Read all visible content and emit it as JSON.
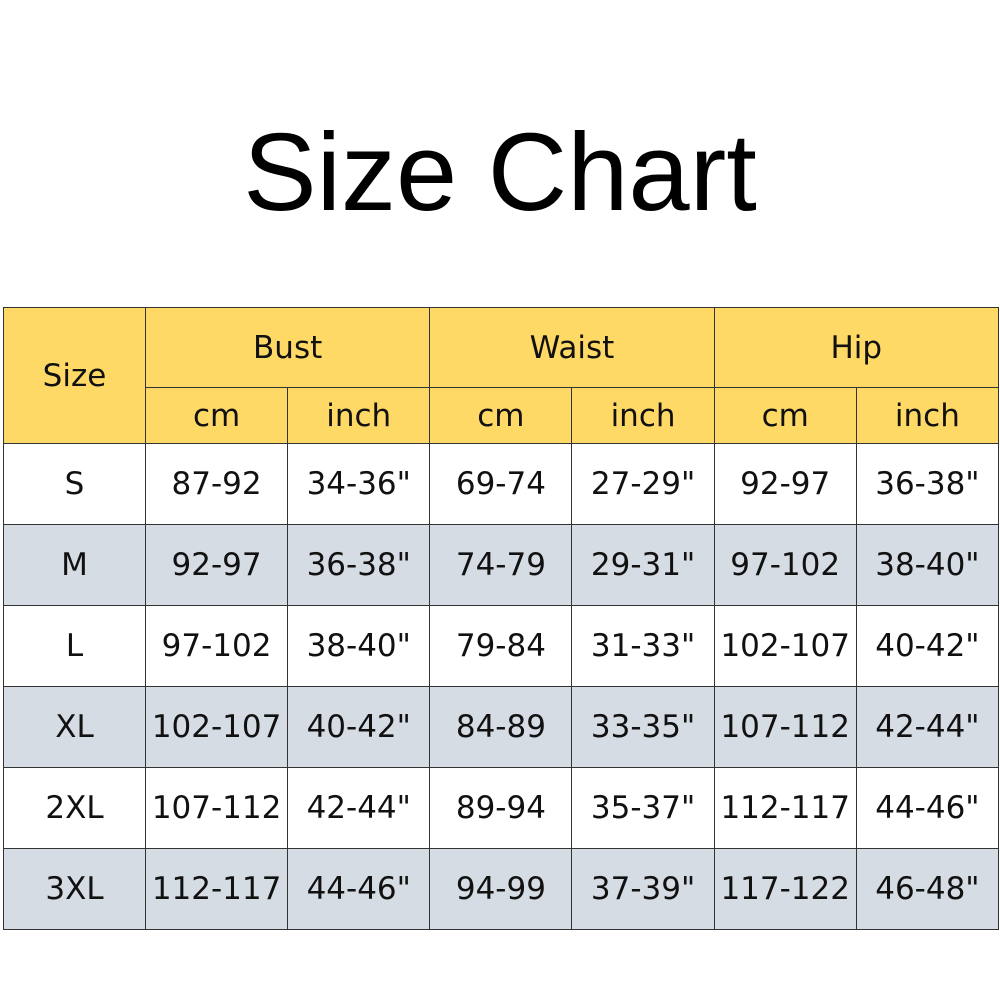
{
  "title": "Size Chart",
  "colors": {
    "header": "#FFD966",
    "alt_row": "#D6DCE4"
  },
  "table": {
    "size_header": "Size",
    "groups": [
      "Bust",
      "Waist",
      "Hip"
    ],
    "units": [
      "cm",
      "inch",
      "cm",
      "inch",
      "cm",
      "inch"
    ],
    "rows": [
      [
        "S",
        "87-92",
        "34-36\"",
        "69-74",
        "27-29\"",
        "92-97",
        "36-38\""
      ],
      [
        "M",
        "92-97",
        "36-38\"",
        "74-79",
        "29-31\"",
        "97-102",
        "38-40\""
      ],
      [
        "L",
        "97-102",
        "38-40\"",
        "79-84",
        "31-33\"",
        "102-107",
        "40-42\""
      ],
      [
        "XL",
        "102-107",
        "40-42\"",
        "84-89",
        "33-35\"",
        "107-112",
        "42-44\""
      ],
      [
        "2XL",
        "107-112",
        "42-44\"",
        "89-94",
        "35-37\"",
        "112-117",
        "44-46\""
      ],
      [
        "3XL",
        "112-117",
        "44-46\"",
        "94-99",
        "37-39\"",
        "117-122",
        "46-48\""
      ]
    ]
  }
}
